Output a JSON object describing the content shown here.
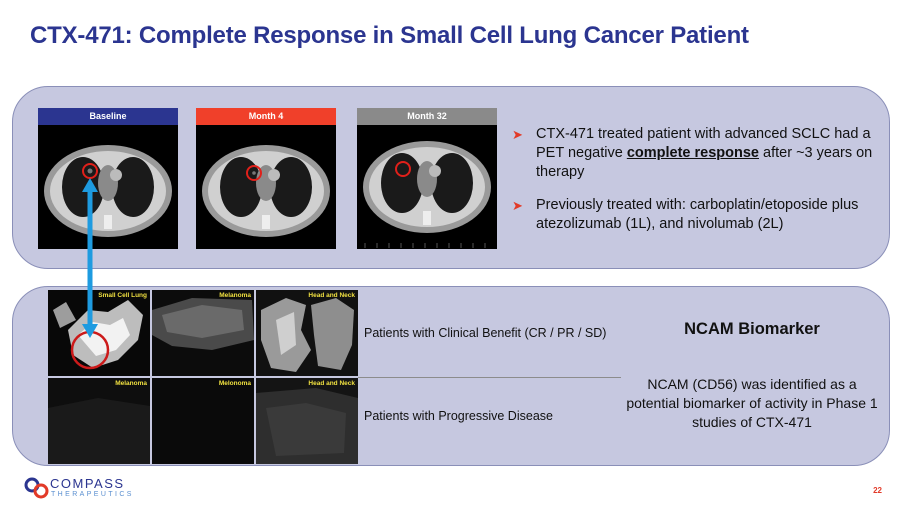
{
  "slide": {
    "title": "CTX-471: Complete Response in Small Cell Lung Cancer Patient",
    "page_number": "22"
  },
  "scans": [
    {
      "label": "Baseline",
      "color": "#2b3590"
    },
    {
      "label": "Month 4",
      "color": "#f0402a"
    },
    {
      "label": "Month 32",
      "color": "#8a8a8a"
    }
  ],
  "bullets": [
    {
      "pre": "CTX-471 treated patient with advanced SCLC had a PET negative ",
      "emphasis": "complete response",
      "post": " after ~3 years on therapy"
    },
    {
      "pre": "Previously treated with: carboplatin/etoposide plus atezolizumab (1L), and nivolumab (2L)",
      "emphasis": "",
      "post": ""
    }
  ],
  "tissue_tiles": [
    {
      "label": "Small Cell Lung"
    },
    {
      "label": "Melanoma"
    },
    {
      "label": "Head and Neck"
    },
    {
      "label": "Melanoma"
    },
    {
      "label": "Melonoma"
    },
    {
      "label": "Head and Neck"
    }
  ],
  "groups": {
    "clinical_benefit": "Patients with Clinical Benefit (CR / PR / SD)",
    "progressive": "Patients with Progressive Disease"
  },
  "biomarker": {
    "title": "NCAM Biomarker",
    "description": "NCAM (CD56) was identified as a potential biomarker of activity in Phase 1 studies of CTX-471"
  },
  "logo": {
    "name": "COMPASS",
    "subtitle": "THERAPEUTICS"
  },
  "colors": {
    "title": "#2b3590",
    "accent": "#e23a28",
    "link_arrow": "#1e9be0",
    "panel": "#c6c8e0"
  }
}
